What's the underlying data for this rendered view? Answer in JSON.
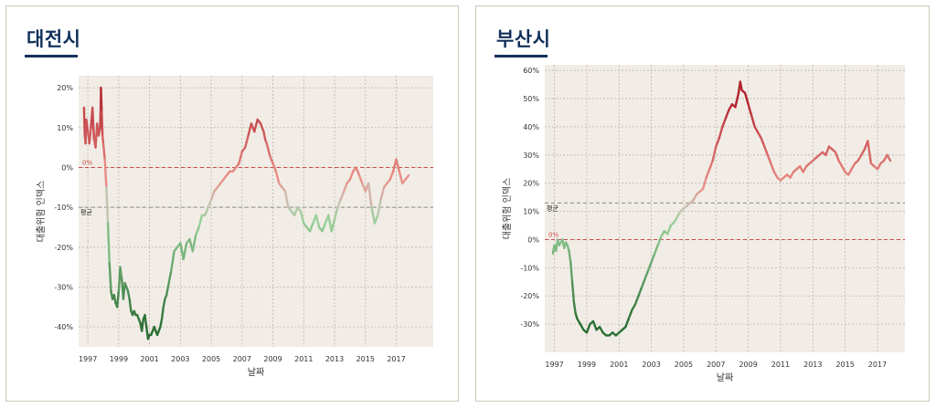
{
  "colors": {
    "panel_border": "#cfc8b8",
    "plot_bg": "#f1ede6",
    "grid": "#bcb6aa",
    "zero_line": "#d04a4a",
    "avg_line": "#8a8a8a",
    "title": "#12305a",
    "text": "#333333",
    "dark_red": "#b3222e",
    "light_red": "#ea9088",
    "neutral": "#c8c3b5",
    "light_green": "#9ad19a",
    "dark_green": "#2b6f35"
  },
  "chart_data": [
    {
      "type": "line",
      "title": "대전시",
      "xlabel": "날짜",
      "ylabel": "대출위험 인덱스",
      "xlim": [
        1996.4,
        2019.4
      ],
      "ylim": [
        -45,
        23
      ],
      "yticks": [
        20,
        10,
        0,
        -10,
        -20,
        -30,
        -40
      ],
      "ytick_labels": [
        "20%",
        "10%",
        "0%",
        "-10%",
        "-20%",
        "-30%",
        "-40%"
      ],
      "xticks": [
        1997,
        1999,
        2001,
        2003,
        2005,
        2007,
        2009,
        2011,
        2013,
        2015,
        2017
      ],
      "xtick_labels": [
        "1997",
        "1999",
        "2001",
        "2003",
        "2005",
        "2007",
        "2009",
        "2011",
        "2013",
        "2015",
        "2017"
      ],
      "zero_label": "0%",
      "avg_value": -10,
      "avg_label": "평균",
      "color_scale": [
        -40,
        20
      ],
      "series": [
        {
          "name": "대출위험 인덱스",
          "x": [
            1996.75,
            1996.8,
            1996.85,
            1996.9,
            1997.0,
            1997.1,
            1997.2,
            1997.3,
            1997.4,
            1997.5,
            1997.6,
            1997.7,
            1997.8,
            1997.85,
            1997.9,
            1997.95,
            1998.0,
            1998.1,
            1998.2,
            1998.3,
            1998.4,
            1998.5,
            1998.6,
            1998.7,
            1998.8,
            1998.9,
            1999.0,
            1999.1,
            1999.2,
            1999.3,
            1999.4,
            1999.5,
            1999.6,
            1999.7,
            1999.8,
            1999.9,
            2000.0,
            2000.1,
            2000.2,
            2000.3,
            2000.4,
            2000.5,
            2000.6,
            2000.7,
            2000.8,
            2000.9,
            2001.0,
            2001.1,
            2001.2,
            2001.3,
            2001.4,
            2001.5,
            2001.6,
            2001.7,
            2001.8,
            2001.9,
            2002.0,
            2002.1,
            2002.2,
            2002.4,
            2002.6,
            2002.8,
            2003.0,
            2003.2,
            2003.4,
            2003.6,
            2003.8,
            2004.0,
            2004.2,
            2004.4,
            2004.6,
            2004.8,
            2005.0,
            2005.2,
            2005.4,
            2005.6,
            2005.8,
            2006.0,
            2006.2,
            2006.4,
            2006.6,
            2006.8,
            2007.0,
            2007.2,
            2007.4,
            2007.6,
            2007.8,
            2008.0,
            2008.2,
            2008.4,
            2008.5,
            2008.6,
            2008.8,
            2009.0,
            2009.2,
            2009.4,
            2009.6,
            2009.8,
            2010.0,
            2010.2,
            2010.4,
            2010.6,
            2010.8,
            2011.0,
            2011.2,
            2011.4,
            2011.6,
            2011.8,
            2012.0,
            2012.2,
            2012.4,
            2012.6,
            2012.8,
            2013.0,
            2013.2,
            2013.4,
            2013.6,
            2013.8,
            2014.0,
            2014.2,
            2014.4,
            2014.6,
            2014.8,
            2015.0,
            2015.2,
            2015.4,
            2015.6,
            2015.8,
            2016.0,
            2016.2,
            2016.4,
            2016.6,
            2016.8,
            2017.0,
            2017.2,
            2017.4,
            2017.6,
            2017.8
          ],
          "y": [
            15,
            8,
            6,
            12,
            9,
            6,
            10,
            15,
            7,
            5,
            11,
            8,
            10,
            20,
            14,
            8,
            6,
            2,
            -5,
            -14,
            -24,
            -31,
            -33,
            -32,
            -34,
            -35,
            -31,
            -25,
            -28,
            -33,
            -29,
            -30,
            -31,
            -33,
            -36,
            -37,
            -36,
            -37,
            -37,
            -38,
            -39,
            -41,
            -38,
            -37,
            -40,
            -43,
            -42,
            -42,
            -41,
            -40,
            -41,
            -42,
            -41,
            -40,
            -38,
            -35,
            -33,
            -32,
            -30,
            -26,
            -21,
            -20,
            -19,
            -23,
            -19,
            -18,
            -21,
            -17,
            -15,
            -12,
            -12,
            -10,
            -8,
            -6,
            -5,
            -4,
            -3,
            -2,
            -1,
            -1,
            0,
            1,
            4,
            5,
            8,
            11,
            9,
            12,
            11,
            9,
            7,
            6,
            3,
            1,
            -1,
            -4,
            -5,
            -6,
            -10,
            -11,
            -12,
            -10,
            -11,
            -14,
            -15,
            -16,
            -14,
            -12,
            -15,
            -16,
            -14,
            -12,
            -16,
            -13,
            -10,
            -8,
            -6,
            -4,
            -3,
            -1,
            0,
            -2,
            -4,
            -6,
            -4,
            -10,
            -14,
            -12,
            -8,
            -5,
            -4,
            -3,
            -1,
            2,
            -1,
            -4,
            -3,
            -2
          ]
        }
      ]
    },
    {
      "type": "line",
      "title": "부산시",
      "xlabel": "날짜",
      "ylabel": "대출위험 인덱스",
      "xlim": [
        1996.4,
        2018.7
      ],
      "ylim": [
        -40,
        62
      ],
      "yticks": [
        60,
        50,
        40,
        30,
        20,
        10,
        0,
        -10,
        -20,
        -30
      ],
      "ytick_labels": [
        "60%",
        "50%",
        "40%",
        "30%",
        "20%",
        "10%",
        "0%",
        "-10%",
        "-20%",
        "-30%"
      ],
      "xticks": [
        1997,
        1999,
        2001,
        2003,
        2005,
        2007,
        2009,
        2011,
        2013,
        2015,
        2017
      ],
      "xtick_labels": [
        "1997",
        "1999",
        "2001",
        "2003",
        "2005",
        "2007",
        "2009",
        "2011",
        "2013",
        "2015",
        "2017"
      ],
      "zero_label": "0%",
      "avg_value": 13,
      "avg_label": "평균",
      "color_scale": [
        -30,
        50
      ],
      "series": [
        {
          "name": "대출위험 인덱스",
          "x": [
            1996.9,
            1997.0,
            1997.1,
            1997.2,
            1997.3,
            1997.4,
            1997.5,
            1997.6,
            1997.7,
            1997.8,
            1997.9,
            1998.0,
            1998.1,
            1998.2,
            1998.3,
            1998.4,
            1998.6,
            1998.8,
            1999.0,
            1999.2,
            1999.4,
            1999.6,
            1999.8,
            2000.0,
            2000.2,
            2000.4,
            2000.6,
            2000.8,
            2001.0,
            2001.2,
            2001.4,
            2001.6,
            2001.8,
            2002.0,
            2002.2,
            2002.4,
            2002.6,
            2002.8,
            2003.0,
            2003.2,
            2003.4,
            2003.6,
            2003.8,
            2004.0,
            2004.2,
            2004.4,
            2004.6,
            2004.8,
            2005.0,
            2005.2,
            2005.4,
            2005.6,
            2005.8,
            2006.0,
            2006.2,
            2006.4,
            2006.6,
            2006.8,
            2007.0,
            2007.2,
            2007.4,
            2007.6,
            2007.8,
            2008.0,
            2008.2,
            2008.4,
            2008.5,
            2008.6,
            2008.8,
            2009.0,
            2009.2,
            2009.4,
            2009.6,
            2009.8,
            2010.0,
            2010.2,
            2010.4,
            2010.6,
            2010.8,
            2011.0,
            2011.2,
            2011.4,
            2011.6,
            2011.8,
            2012.0,
            2012.2,
            2012.4,
            2012.6,
            2012.8,
            2013.0,
            2013.2,
            2013.4,
            2013.6,
            2013.8,
            2014.0,
            2014.2,
            2014.4,
            2014.6,
            2014.8,
            2015.0,
            2015.2,
            2015.4,
            2015.6,
            2015.8,
            2016.0,
            2016.2,
            2016.4,
            2016.6,
            2016.8,
            2017.0,
            2017.2,
            2017.4,
            2017.6,
            2017.8
          ],
          "y": [
            -5,
            -2,
            -4,
            0,
            -2,
            -1,
            0,
            -3,
            -1,
            -2,
            -4,
            -8,
            -15,
            -22,
            -26,
            -28,
            -30,
            -32,
            -33,
            -30,
            -29,
            -32,
            -31,
            -33,
            -34,
            -34,
            -33,
            -34,
            -33,
            -32,
            -31,
            -28,
            -25,
            -23,
            -20,
            -17,
            -14,
            -11,
            -8,
            -5,
            -2,
            1,
            3,
            2,
            5,
            6,
            8,
            10,
            11,
            12,
            13,
            14,
            16,
            17,
            18,
            22,
            25,
            28,
            33,
            36,
            40,
            43,
            46,
            48,
            47,
            52,
            56,
            53,
            52,
            48,
            44,
            40,
            38,
            36,
            33,
            30,
            27,
            24,
            22,
            21,
            22,
            23,
            22,
            24,
            25,
            26,
            24,
            26,
            27,
            28,
            29,
            30,
            31,
            30,
            33,
            32,
            31,
            28,
            26,
            24,
            23,
            25,
            27,
            28,
            30,
            32,
            35,
            27,
            26,
            25,
            27,
            28,
            30,
            28
          ]
        }
      ]
    }
  ]
}
